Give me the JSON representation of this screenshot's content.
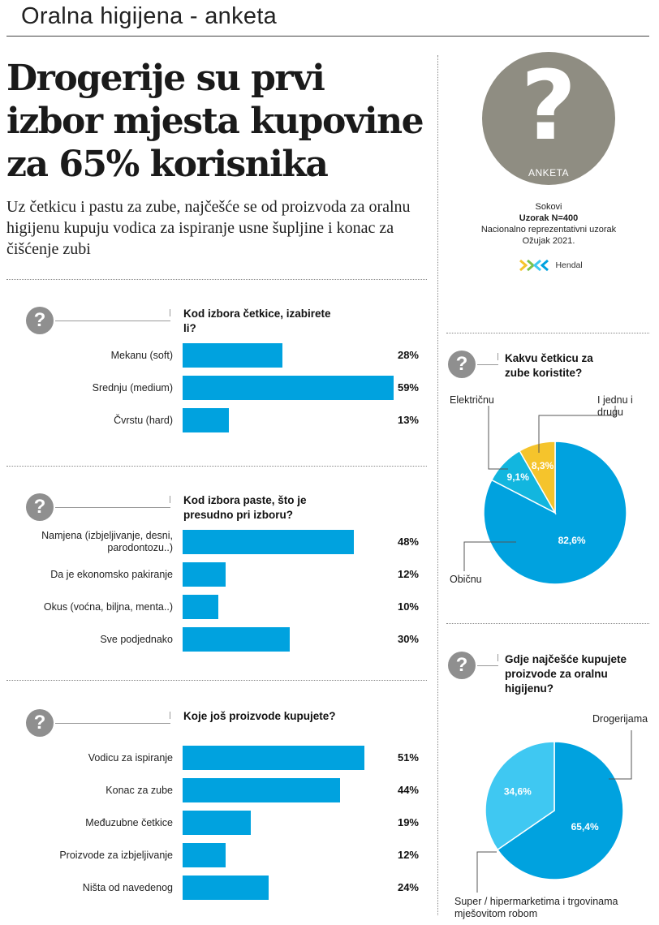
{
  "header": {
    "title": "Oralna higijena - anketa"
  },
  "headline": "Drogerije su prvi izbor mjesta kupovine za 65% korisnika",
  "deck": "Uz četkicu i pastu za zube, najčešće se od proizvoda za oralnu higijenu kupuju vodica za ispiranje usne šupljine i konac za čišćenje zubi",
  "survey": {
    "badge": "ANKETA",
    "line1": "Sokovi",
    "sample": "Uzorak N=400",
    "line3": "Nacionalno reprezentativni uzorak",
    "date": "Ožujak 2021.",
    "logo_text": "Hendal"
  },
  "colors": {
    "bar": "#00a2df",
    "light_blue": "#3fc8f2",
    "cyan": "#12b6df",
    "yellow": "#f5c42c",
    "icon_grey": "#8f8f8f",
    "badge_grey": "#8f8d82"
  },
  "chart_data": [
    {
      "type": "bar",
      "orientation": "horizontal",
      "title": "Kod izbora četkice, izabirete li?",
      "categories": [
        "Mekanu (soft)",
        "Srednju (medium)",
        "Čvrstu (hard)"
      ],
      "values": [
        28,
        59,
        13
      ],
      "value_labels": [
        "28%",
        "59%",
        "13%"
      ],
      "xlim": [
        0,
        60
      ]
    },
    {
      "type": "bar",
      "orientation": "horizontal",
      "title": "Kod izbora paste, što je presudno pri izboru?",
      "categories": [
        "Namjena (izbjeljivanje, desni, parodontozu..)",
        "Da je ekonomsko pakiranje",
        "Okus (voćna, biljna, menta..)",
        "Sve podjednako"
      ],
      "values": [
        48,
        12,
        10,
        30
      ],
      "value_labels": [
        "48%",
        "12%",
        "10%",
        "30%"
      ],
      "xlim": [
        0,
        60
      ]
    },
    {
      "type": "bar",
      "orientation": "horizontal",
      "title": "Koje još proizvode kupujete?",
      "categories": [
        "Vodicu za ispiranje",
        "Konac za zube",
        "Međuzubne četkice",
        "Proizvode za izbjeljivanje",
        "Ništa od navedenog"
      ],
      "values": [
        51,
        44,
        19,
        12,
        24
      ],
      "value_labels": [
        "51%",
        "44%",
        "19%",
        "12%",
        "24%"
      ],
      "xlim": [
        0,
        60
      ]
    },
    {
      "type": "pie",
      "title": "Kakvu četkicu za zube koristite?",
      "categories": [
        "Običnu",
        "Električnu",
        "I jednu i drugu"
      ],
      "values": [
        82.6,
        9.1,
        8.3
      ],
      "value_labels": [
        "82,6%",
        "9,1%",
        "8,3%"
      ],
      "colors": [
        "#00a2df",
        "#12b6df",
        "#f5c42c"
      ]
    },
    {
      "type": "pie",
      "title": "Gdje najčešće kupujete proizvode za oralnu higijenu?",
      "categories": [
        "Drogerijama",
        "Super / hipermarketima i trgovinama mješovitom robom"
      ],
      "values": [
        65.4,
        34.6
      ],
      "value_labels": [
        "65,4%",
        "34,6%"
      ],
      "colors": [
        "#00a2df",
        "#3fc8f2"
      ]
    }
  ]
}
